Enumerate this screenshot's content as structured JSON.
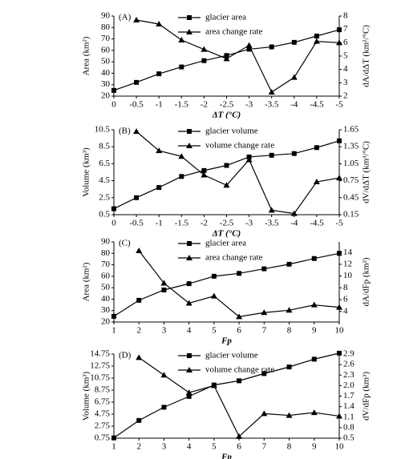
{
  "chart_data": [
    {
      "type": "line",
      "label": "(A)",
      "x_label": "ΔT (°C)",
      "y_label": "Area (km²)",
      "y2_label": "dA/dΔT (km²/°C)",
      "x": [
        0,
        -0.5,
        -1,
        -1.5,
        -2,
        -2.5,
        -3,
        -3.5,
        -4,
        -4.5,
        -5
      ],
      "xlim": [
        0,
        -5
      ],
      "xticks": [
        0,
        -0.5,
        -1,
        -1.5,
        -2,
        -2.5,
        -3,
        -3.5,
        -4,
        -4.5,
        -5
      ],
      "ylim": [
        20,
        90
      ],
      "yticks": [
        20,
        30,
        40,
        50,
        60,
        70,
        80,
        90
      ],
      "y2lim": [
        2,
        8
      ],
      "y2ticks": [
        2,
        3,
        4,
        5,
        6,
        7,
        8
      ],
      "series": [
        {
          "name": "glacier area",
          "color": "#000000",
          "marker": "square",
          "values": [
            25,
            32,
            39.5,
            45.5,
            51,
            55.5,
            61,
            63,
            67,
            72.5,
            78
          ]
        },
        {
          "name": "area change rate",
          "color": "#000000",
          "marker": "triangle",
          "axis": "y2",
          "values": [
            null,
            7.7,
            7.4,
            6.2,
            5.5,
            4.8,
            5.8,
            2.3,
            3.4,
            6.1,
            6.0
          ]
        }
      ]
    },
    {
      "type": "line",
      "label": "(B)",
      "x_label": "ΔT (°C)",
      "y_label": "Volume (km³)",
      "y2_label": "dV/dΔT (km³/°C)",
      "x": [
        0,
        -0.5,
        -1,
        -1.5,
        -2,
        -2.5,
        -3,
        -3.5,
        -4,
        -4.5,
        -5
      ],
      "xlim": [
        0,
        -5
      ],
      "xticks": [
        0,
        -0.5,
        -1,
        -1.5,
        -2,
        -2.5,
        -3,
        -3.5,
        -4,
        -4.5,
        -5
      ],
      "ylim": [
        0.5,
        10.5
      ],
      "yticks": [
        0.5,
        2.5,
        4.5,
        6.5,
        8.5,
        10.5
      ],
      "y2lim": [
        0.15,
        1.65
      ],
      "y2ticks": [
        0.15,
        0.45,
        0.75,
        1.05,
        1.35,
        1.65
      ],
      "series": [
        {
          "name": "glacier volume",
          "color": "#000000",
          "marker": "square",
          "values": [
            1.2,
            2.5,
            3.7,
            5.0,
            5.7,
            6.3,
            7.3,
            7.5,
            7.7,
            8.4,
            9.2
          ]
        },
        {
          "name": "volume change rate",
          "color": "#000000",
          "marker": "triangle",
          "axis": "y2",
          "values": [
            null,
            1.62,
            1.28,
            1.18,
            0.85,
            0.67,
            1.12,
            0.23,
            0.17,
            0.73,
            0.8
          ]
        }
      ]
    },
    {
      "type": "line",
      "label": "(C)",
      "x_label": "Fp",
      "y_label": "Area (km²)",
      "y2_label": "dA/dFp (km²)",
      "x": [
        1,
        2,
        3,
        4,
        5,
        6,
        7,
        8,
        9,
        10
      ],
      "xlim": [
        1,
        10
      ],
      "xticks": [
        1,
        2,
        3,
        4,
        5,
        6,
        7,
        8,
        9,
        10
      ],
      "ylim": [
        20,
        90
      ],
      "yticks": [
        20,
        30,
        40,
        50,
        60,
        70,
        80,
        90
      ],
      "y2lim": [
        2.2,
        15.8
      ],
      "y2ticks": [
        4,
        6,
        8,
        10,
        12,
        14
      ],
      "series": [
        {
          "name": "glacier area",
          "color": "#000000",
          "marker": "square",
          "values": [
            25,
            39,
            48,
            53.5,
            60,
            62.5,
            66.5,
            70.5,
            75.5,
            80
          ]
        },
        {
          "name": "area change rate",
          "color": "#000000",
          "marker": "triangle",
          "axis": "y2",
          "values": [
            null,
            14.3,
            8.8,
            5.4,
            6.6,
            3.1,
            3.8,
            4.2,
            5.1,
            4.7
          ]
        }
      ]
    },
    {
      "type": "line",
      "label": "(D)",
      "x_label": "Fp",
      "y_label": "Volume (km³)",
      "y2_label": "dV/dFp (km³)",
      "x": [
        1,
        2,
        3,
        4,
        5,
        6,
        7,
        8,
        9,
        10
      ],
      "xlim": [
        1,
        10
      ],
      "xticks": [
        1,
        2,
        3,
        4,
        5,
        6,
        7,
        8,
        9,
        10
      ],
      "ylim": [
        0.75,
        14.75
      ],
      "yticks": [
        0.75,
        2.75,
        4.75,
        6.75,
        8.75,
        10.75,
        12.75,
        14.75
      ],
      "y2lim": [
        0.5,
        2.9
      ],
      "y2ticks": [
        0.5,
        0.8,
        1.1,
        1.4,
        1.7,
        {
          "value": 2,
          "label": "2.0"
        },
        2.3,
        2.6,
        2.9
      ],
      "series": [
        {
          "name": "glacier volume",
          "color": "#000000",
          "marker": "square",
          "values": [
            0.8,
            3.7,
            5.9,
            7.7,
            9.6,
            10.3,
            11.5,
            12.6,
            13.9,
            14.9
          ]
        },
        {
          "name": "volume change rate",
          "color": "#000000",
          "marker": "triangle",
          "axis": "y2",
          "values": [
            null,
            2.8,
            2.3,
            1.8,
            2.0,
            0.55,
            1.2,
            1.15,
            1.23,
            1.13
          ]
        }
      ]
    }
  ]
}
